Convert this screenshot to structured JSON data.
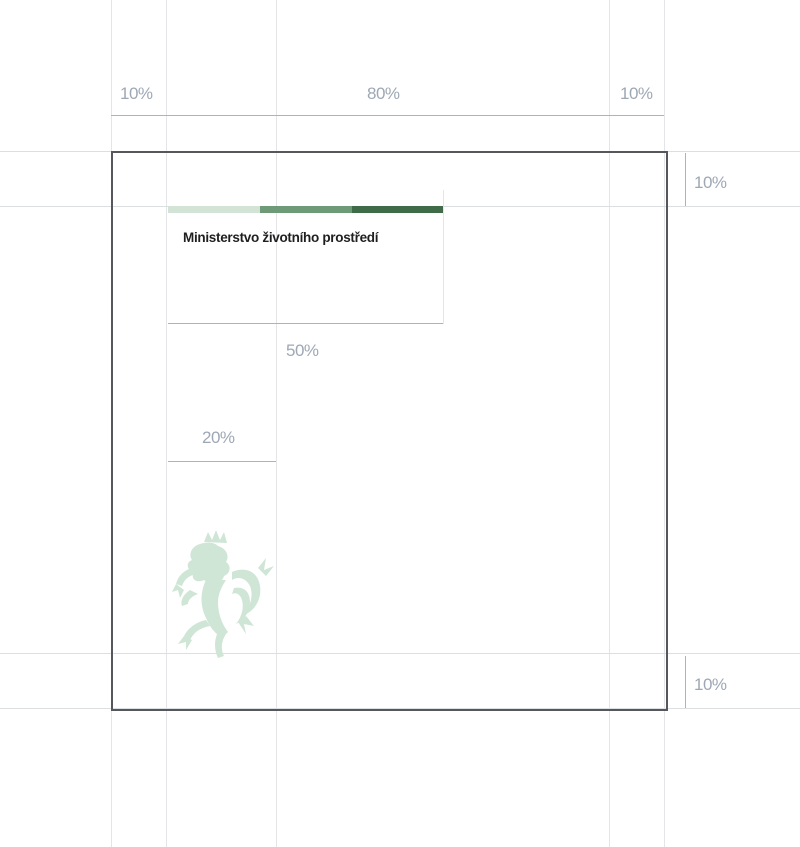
{
  "measurements": {
    "left_margin": "10%",
    "content_width": "80%",
    "right_margin": "10%",
    "top_margin": "10%",
    "bottom_margin": "10%",
    "logo_width": "50%",
    "emblem_width": "20%"
  },
  "logo": {
    "name": "Ministerstvo životního prostředí",
    "bar_colors": [
      "#d3e4d6",
      "#6e9a78",
      "#3f6b49",
      "#2d5a38"
    ]
  },
  "colors": {
    "frame": "#55575d",
    "guide": "#e3e5e8",
    "measure": "#a9b4c2",
    "emblem": "#cfe6d6"
  },
  "icons": {
    "emblem": "czech-lion-emblem-icon"
  }
}
